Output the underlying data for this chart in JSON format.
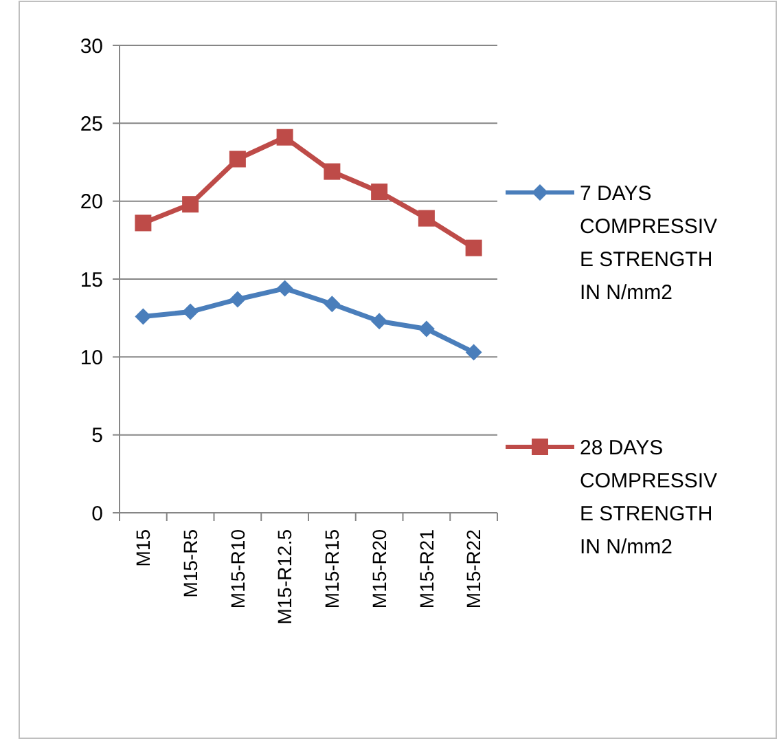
{
  "chart_data": {
    "type": "line",
    "categories": [
      "M15",
      "M15-R5",
      "M15-R10",
      "M15-R12.5",
      "M15-R15",
      "M15-R20",
      "M15-R21",
      "M15-R22"
    ],
    "series": [
      {
        "name": "7 DAYS COMPRESSIVE STRENGTH IN N/mm2",
        "color": "#4a7ebb",
        "marker": "diamond",
        "values": [
          12.6,
          12.9,
          13.7,
          14.4,
          13.4,
          12.3,
          11.8,
          10.3
        ]
      },
      {
        "name": "28 DAYS COMPRESSIVE STRENGTH IN N/mm2",
        "color": "#be4b48",
        "marker": "square",
        "values": [
          18.6,
          19.8,
          22.7,
          24.1,
          21.9,
          20.6,
          18.9,
          17.0
        ]
      }
    ],
    "ylim": [
      0,
      30
    ],
    "yticks": [
      0,
      5,
      10,
      15,
      20,
      25,
      30
    ],
    "grid": "y",
    "legend": "right",
    "line_style": "solid"
  }
}
